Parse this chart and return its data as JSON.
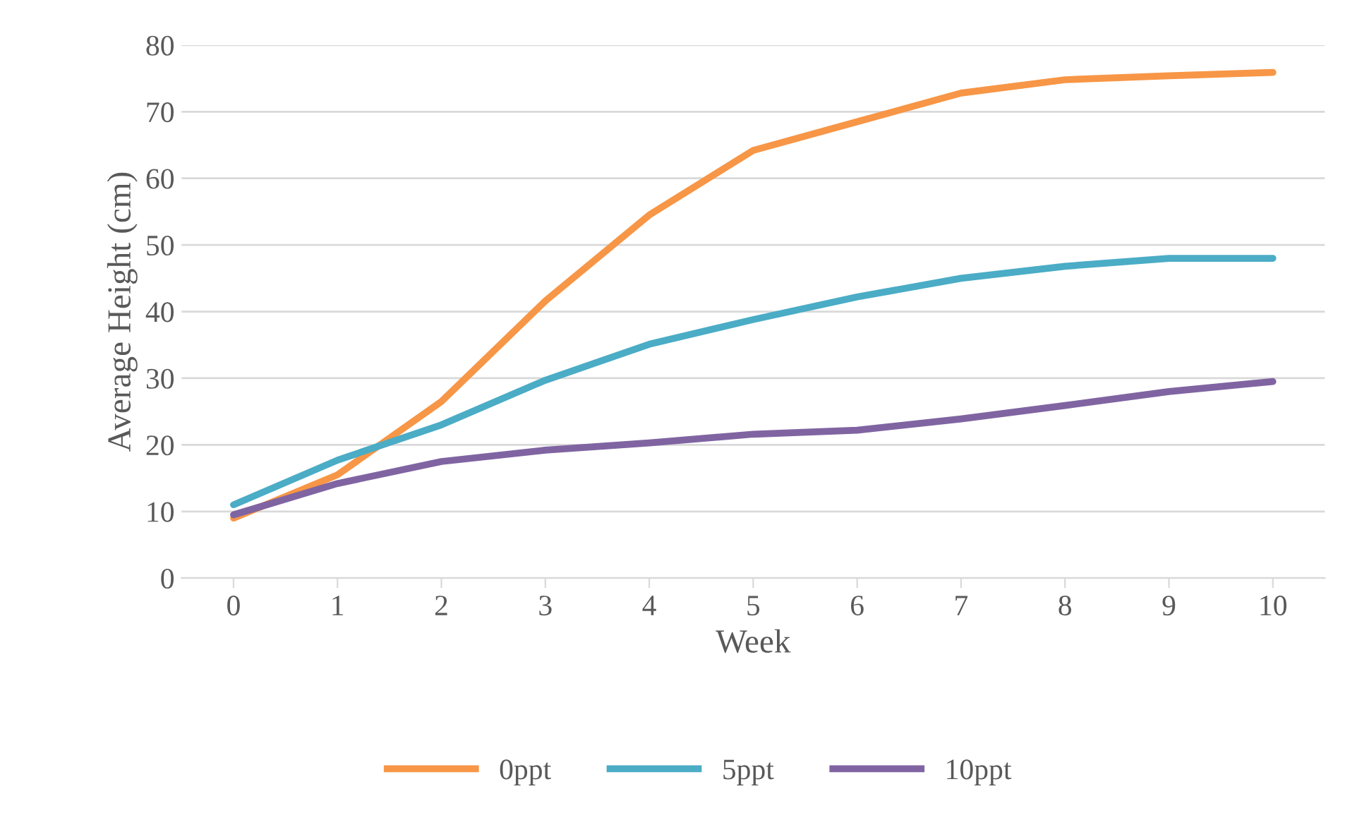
{
  "chart_data": {
    "type": "line",
    "xlabel": "Week",
    "ylabel": "Average Height (cm)",
    "categories": [
      "0",
      "1",
      "2",
      "3",
      "4",
      "5",
      "6",
      "7",
      "8",
      "9",
      "10"
    ],
    "series": [
      {
        "name": "0ppt",
        "color": "#f79646",
        "values": [
          9,
          15.5,
          26.5,
          41.6,
          54.5,
          64.2,
          68.5,
          72.8,
          74.8,
          75.4,
          75.9
        ]
      },
      {
        "name": "5ppt",
        "color": "#4bacc6",
        "values": [
          11,
          17.7,
          23,
          29.7,
          35.1,
          38.8,
          42.2,
          45,
          46.8,
          48,
          48
        ]
      },
      {
        "name": "10ppt",
        "color": "#8064a2",
        "values": [
          9.5,
          14.2,
          17.5,
          19.2,
          20.3,
          21.6,
          22.2,
          23.9,
          25.9,
          28,
          29.5
        ]
      }
    ],
    "ylim": [
      0,
      80
    ],
    "yticks": [
      0,
      10,
      20,
      30,
      40,
      50,
      60,
      70,
      80
    ],
    "grid": "y",
    "legend": "bottom",
    "marker": "none",
    "line_style": "solid"
  }
}
